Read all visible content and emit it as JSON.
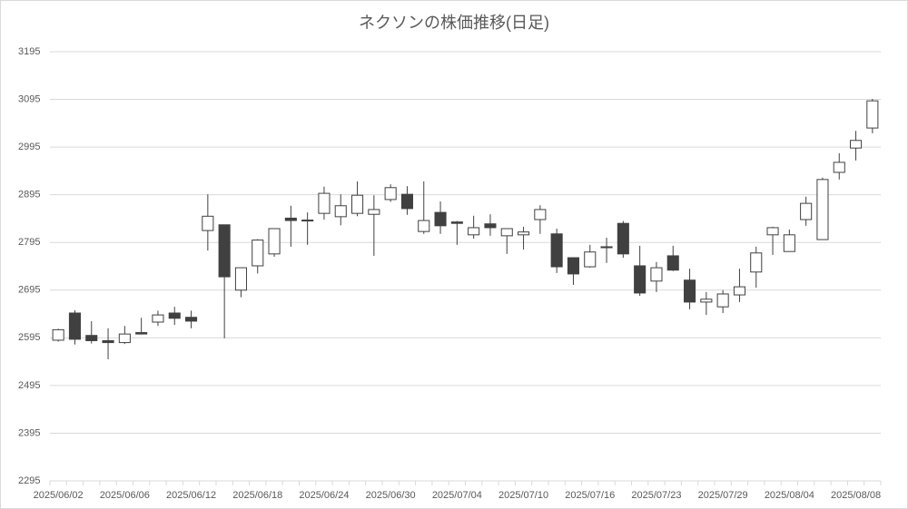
{
  "chart_data": {
    "type": "candlestick",
    "title": "ネクソンの株価推移(日足)",
    "categories": [
      "2025/06/02",
      null,
      null,
      null,
      "2025/06/06",
      null,
      null,
      null,
      "2025/06/12",
      null,
      null,
      null,
      "2025/06/18",
      null,
      null,
      null,
      "2025/06/24",
      null,
      null,
      null,
      "2025/06/30",
      null,
      null,
      null,
      "2025/07/04",
      null,
      null,
      null,
      "2025/07/10",
      null,
      null,
      null,
      "2025/07/16",
      null,
      null,
      null,
      "2025/07/23",
      null,
      null,
      null,
      "2025/07/29",
      null,
      null,
      null,
      "2025/08/04",
      null,
      null,
      null,
      "2025/08/08",
      null
    ],
    "open": [
      2590,
      2647,
      2600,
      2589,
      2585,
      2606,
      2628,
      2647,
      2638,
      2820,
      2832,
      2695,
      2746,
      2771,
      2846,
      2842,
      2856,
      2849,
      2856,
      2854,
      2885,
      2896,
      2818,
      2858,
      2838,
      2811,
      2834,
      2809,
      2811,
      2843,
      2813,
      2763,
      2744,
      2786,
      2835,
      2746,
      2714,
      2767,
      2716,
      2670,
      2660,
      2685,
      2733,
      2811,
      2776,
      2843,
      2801,
      2942,
      2993,
      3035
    ],
    "high": [
      2614,
      2653,
      2630,
      2615,
      2620,
      2637,
      2652,
      2660,
      2652,
      2896,
      2832,
      2742,
      2802,
      2824,
      2872,
      2858,
      2912,
      2896,
      2923,
      2894,
      2917,
      2913,
      2923,
      2881,
      2840,
      2851,
      2854,
      2824,
      2828,
      2873,
      2824,
      2763,
      2790,
      2805,
      2840,
      2788,
      2754,
      2788,
      2740,
      2691,
      2695,
      2740,
      2786,
      2828,
      2822,
      2891,
      2931,
      2982,
      3029,
      3096
    ],
    "low": [
      2587,
      2581,
      2583,
      2550,
      2582,
      2603,
      2620,
      2622,
      2615,
      2778,
      2594,
      2680,
      2730,
      2765,
      2786,
      2790,
      2843,
      2831,
      2850,
      2767,
      2880,
      2853,
      2813,
      2813,
      2790,
      2803,
      2809,
      2771,
      2780,
      2813,
      2731,
      2706,
      2742,
      2752,
      2763,
      2683,
      2691,
      2735,
      2655,
      2643,
      2647,
      2670,
      2700,
      2769,
      2776,
      2830,
      2801,
      2927,
      2967,
      3024
    ],
    "close": [
      2612,
      2592,
      2589,
      2585,
      2603,
      2603,
      2643,
      2636,
      2630,
      2850,
      2723,
      2742,
      2800,
      2824,
      2841,
      2840,
      2898,
      2872,
      2894,
      2864,
      2910,
      2866,
      2841,
      2830,
      2835,
      2826,
      2826,
      2824,
      2817,
      2864,
      2744,
      2729,
      2775,
      2784,
      2771,
      2689,
      2742,
      2737,
      2670,
      2676,
      2687,
      2702,
      2773,
      2826,
      2811,
      2877,
      2927,
      2963,
      3009,
      3092
    ],
    "up_color": "#ffffff",
    "down_color": "#404040",
    "line_color": "#404040",
    "ylim": [
      2295,
      3195
    ],
    "yticks": [
      2295,
      2395,
      2495,
      2595,
      2695,
      2795,
      2895,
      2995,
      3095,
      3195
    ],
    "grid": true
  }
}
